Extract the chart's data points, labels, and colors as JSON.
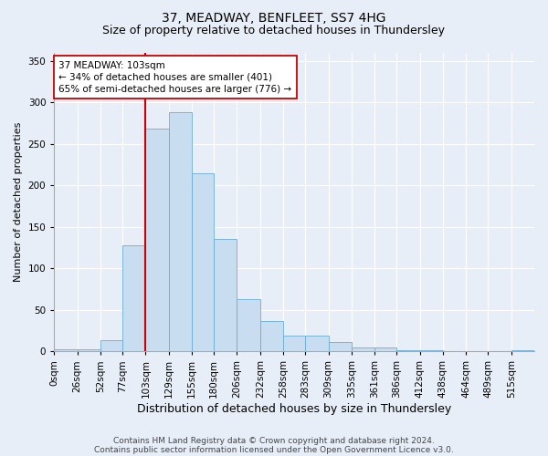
{
  "title1": "37, MEADWAY, BENFLEET, SS7 4HG",
  "title2": "Size of property relative to detached houses in Thundersley",
  "xlabel": "Distribution of detached houses by size in Thundersley",
  "ylabel": "Number of detached properties",
  "footnote1": "Contains HM Land Registry data © Crown copyright and database right 2024.",
  "footnote2": "Contains public sector information licensed under the Open Government Licence v3.0.",
  "bin_labels": [
    "0sqm",
    "26sqm",
    "52sqm",
    "77sqm",
    "103sqm",
    "129sqm",
    "155sqm",
    "180sqm",
    "206sqm",
    "232sqm",
    "258sqm",
    "283sqm",
    "309sqm",
    "335sqm",
    "361sqm",
    "386sqm",
    "412sqm",
    "438sqm",
    "464sqm",
    "489sqm",
    "515sqm"
  ],
  "bin_edges": [
    0,
    26,
    52,
    77,
    103,
    129,
    155,
    180,
    206,
    232,
    258,
    283,
    309,
    335,
    361,
    386,
    412,
    438,
    464,
    489,
    515,
    541
  ],
  "bar_heights": [
    3,
    3,
    13,
    128,
    268,
    288,
    215,
    135,
    63,
    37,
    19,
    19,
    11,
    5,
    5,
    1,
    1,
    0,
    0,
    0,
    1
  ],
  "bar_color": "#c9ddf0",
  "bar_edge_color": "#6aaed6",
  "property_size": 103,
  "vline_color": "#cc0000",
  "annotation_line1": "37 MEADWAY: 103sqm",
  "annotation_line2": "← 34% of detached houses are smaller (401)",
  "annotation_line3": "65% of semi-detached houses are larger (776) →",
  "annotation_box_color": "#ffffff",
  "annotation_box_edge": "#cc0000",
  "ylim": [
    0,
    360
  ],
  "yticks": [
    0,
    50,
    100,
    150,
    200,
    250,
    300,
    350
  ],
  "bg_color": "#e8eef7",
  "plot_bg_color": "#e8eef7",
  "grid_color": "#ffffff",
  "title1_fontsize": 10,
  "title2_fontsize": 9,
  "xlabel_fontsize": 9,
  "ylabel_fontsize": 8,
  "tick_fontsize": 7.5,
  "footnote_fontsize": 6.5
}
